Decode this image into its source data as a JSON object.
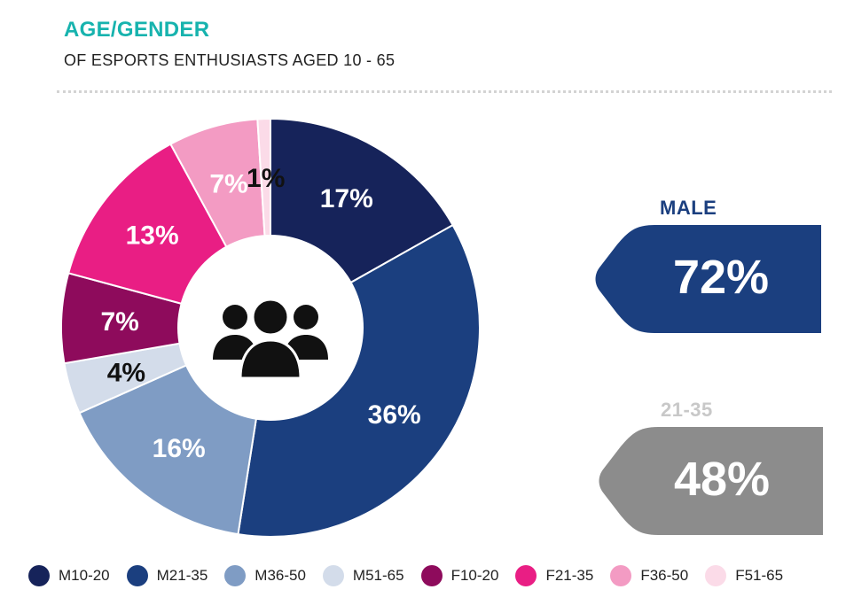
{
  "header": {
    "title": "AGE/GENDER",
    "subtitle": "OF ESPORTS ENTHUSIASTS AGED 10 - 65"
  },
  "chart_data": {
    "type": "pie",
    "title": "AGE/GENDER",
    "subtitle": "OF ESPORTS ENTHUSIASTS AGED 10 - 65",
    "donut": true,
    "center_icon": "group-people-icon",
    "categories": [
      "M10-20",
      "M21-35",
      "M36-50",
      "M51-65",
      "F10-20",
      "F21-35",
      "F36-50",
      "F51-65"
    ],
    "values": [
      17,
      36,
      16,
      4,
      7,
      13,
      7,
      1
    ],
    "labels": [
      "17%",
      "36%",
      "16%",
      "4%",
      "7%",
      "13%",
      "7%",
      "1%"
    ],
    "colors": [
      "#16235a",
      "#1b3f7f",
      "#7f9cc4",
      "#d3dcea",
      "#8e0b5c",
      "#e91e84",
      "#f39bc3",
      "#fbdbe8"
    ],
    "label_colors": [
      "#ffffff",
      "#ffffff",
      "#ffffff",
      "#111111",
      "#ffffff",
      "#ffffff",
      "#ffffff",
      "#111111"
    ],
    "legend_position": "bottom"
  },
  "stats": {
    "male": {
      "label": "MALE",
      "value": "72%",
      "label_color": "#1b3f7f",
      "box_color": "#1b3f7f"
    },
    "age": {
      "label": "21-35",
      "value": "48%",
      "label_color": "#c8c8c8",
      "box_color": "#8c8c8c"
    }
  }
}
